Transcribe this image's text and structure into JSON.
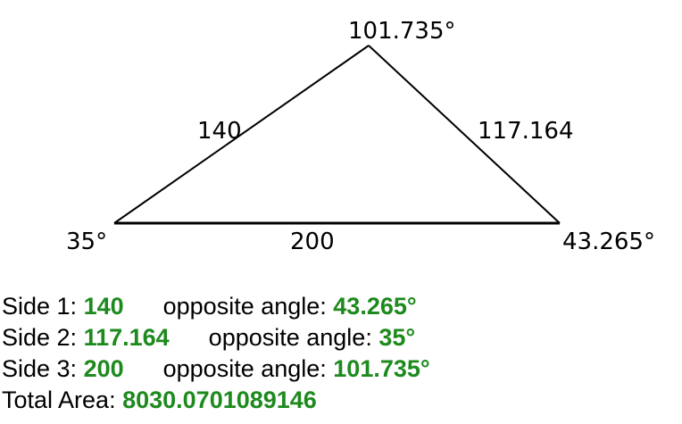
{
  "triangle": {
    "top_angle": "101.735°",
    "left_angle": "35°",
    "right_angle": "43.265°",
    "left_side": "140",
    "right_side": "117.164",
    "bottom_side": "200"
  },
  "results": {
    "side1_label": "Side 1: ",
    "side1_value": "140",
    "side1_opp_label": "opposite angle: ",
    "side1_opp_value": "43.265°",
    "side2_label": "Side 2: ",
    "side2_value": "117.164",
    "side2_opp_label": "opposite angle: ",
    "side2_opp_value": "35°",
    "side3_label": "Side 3: ",
    "side3_value": "200",
    "side3_opp_label": "opposite angle: ",
    "side3_opp_value": "101.735°",
    "area_label": "Total Area: ",
    "area_value": "8030.0701089146"
  },
  "colors": {
    "value_green": "#1e8a1e"
  }
}
